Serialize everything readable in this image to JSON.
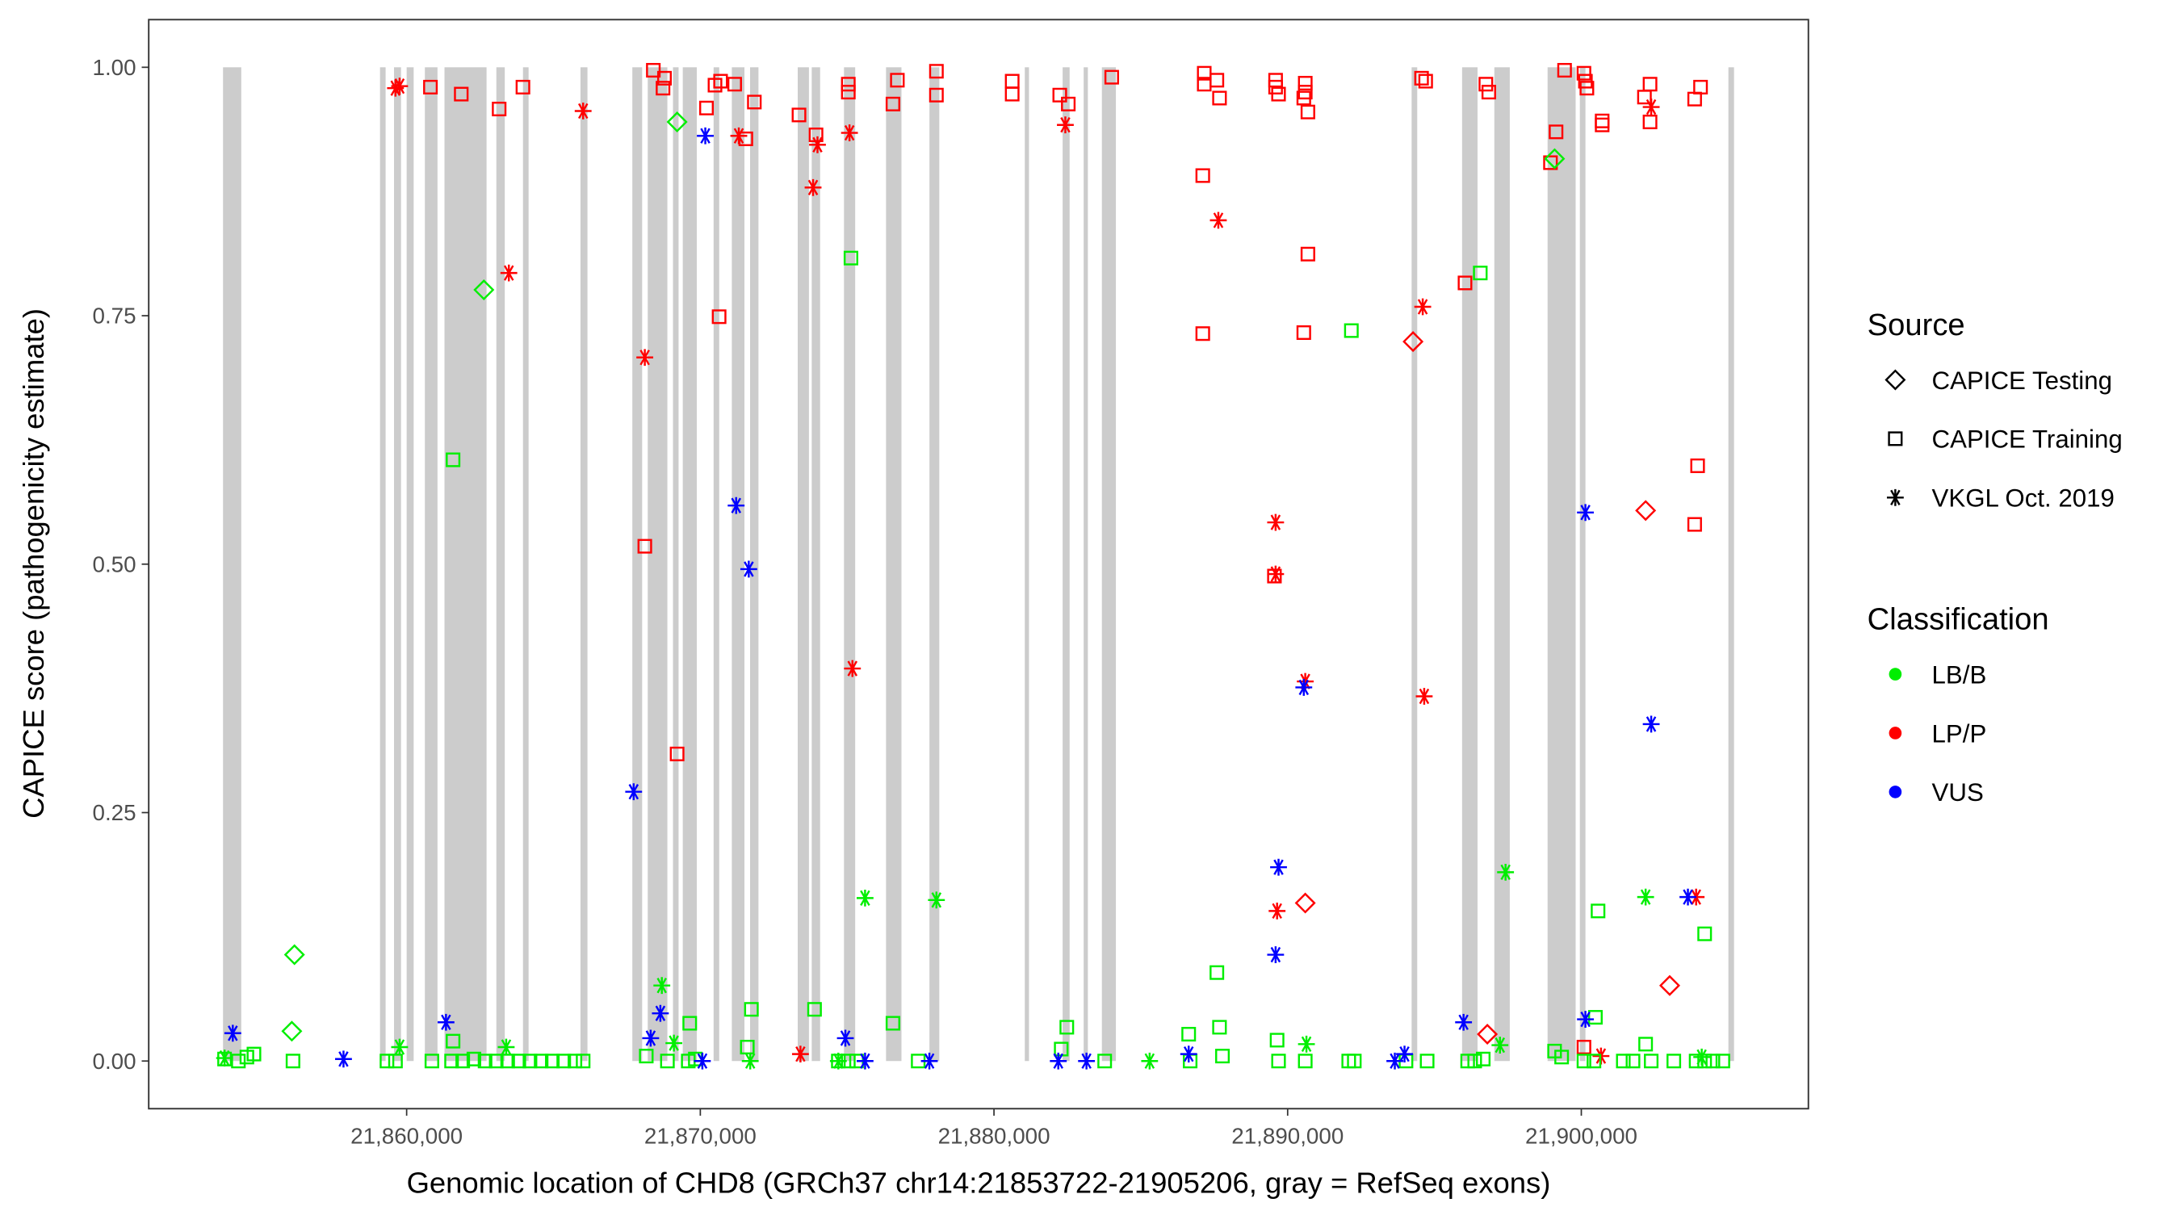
{
  "chart_data": {
    "type": "scatter",
    "xlabel": "Genomic location of CHD8 (GRCh37 chr14:21853722-21905206, gray = RefSeq exons)",
    "ylabel": "CAPICE score (pathogenicity estimate)",
    "xlim": [
      21853200,
      21905700
    ],
    "ylim": [
      -0.047,
      1.05
    ],
    "x_ticks": [
      21860000,
      21870000,
      21880000,
      21890000,
      21900000
    ],
    "x_tick_labels": [
      "21,860,000",
      "21,870,000",
      "21,880,000",
      "21,890,000",
      "21,900,000"
    ],
    "y_ticks": [
      0,
      0.25,
      0.5,
      0.75,
      1.0
    ],
    "y_tick_labels": [
      "0.00",
      "0.25",
      "0.50",
      "0.75",
      "1.00"
    ],
    "grid": false,
    "legend_position": "right",
    "legend": {
      "source_title": "Source",
      "source_items": [
        {
          "label": "CAPICE Testing",
          "shape": "diamond"
        },
        {
          "label": "CAPICE Training",
          "shape": "square"
        },
        {
          "label": "VKGL Oct. 2019",
          "shape": "asterisk"
        }
      ],
      "class_title": "Classification",
      "class_items": [
        {
          "label": "LB/B",
          "color": "#00ee00"
        },
        {
          "label": "LP/P",
          "color": "#ff0000"
        },
        {
          "label": "VUS",
          "color": "#0000ff"
        }
      ]
    },
    "exons": [
      [
        21853747,
        21854368
      ],
      [
        21859093,
        21859284
      ],
      [
        21859570,
        21859809
      ],
      [
        21860000,
        21860239
      ],
      [
        21860620,
        21861050
      ],
      [
        21861289,
        21862721
      ],
      [
        21863055,
        21863341
      ],
      [
        21863962,
        21864153
      ],
      [
        21865919,
        21866157
      ],
      [
        21867685,
        21868019
      ],
      [
        21868210,
        21868878
      ],
      [
        21869069,
        21869260
      ],
      [
        21869403,
        21869880
      ],
      [
        21870453,
        21870644
      ],
      [
        21871073,
        21871503
      ],
      [
        21871694,
        21871980
      ],
      [
        21873317,
        21873699
      ],
      [
        21873794,
        21874080
      ],
      [
        21874892,
        21875274
      ],
      [
        21876324,
        21876849
      ],
      [
        21877803,
        21878137
      ],
      [
        21881049,
        21881192
      ],
      [
        21882338,
        21882576
      ],
      [
        21883054,
        21883197
      ],
      [
        21883674,
        21884151
      ],
      [
        21894222,
        21894413
      ],
      [
        21895941,
        21896466
      ],
      [
        21897038,
        21897564
      ],
      [
        21898852,
        21899807
      ],
      [
        21899950,
        21900141
      ],
      [
        21905009,
        21905200
      ]
    ],
    "series": [
      {
        "source": "VKGL Oct. 2019",
        "classification": "LP/P",
        "points": [
          [
            21859620,
            0.979
          ],
          [
            21859760,
            0.981
          ],
          [
            21863480,
            0.793
          ],
          [
            21866010,
            0.956
          ],
          [
            21868110,
            0.708
          ],
          [
            21871310,
            0.931
          ],
          [
            21873840,
            0.879
          ],
          [
            21873990,
            0.922
          ],
          [
            21875080,
            0.934
          ],
          [
            21875180,
            0.395
          ],
          [
            21873410,
            0.007
          ],
          [
            21882430,
            0.942
          ],
          [
            21887640,
            0.846
          ],
          [
            21889590,
            0.542
          ],
          [
            21889590,
            0.49
          ],
          [
            21890600,
            0.382
          ],
          [
            21889640,
            0.151
          ],
          [
            21894600,
            0.759
          ],
          [
            21894650,
            0.367
          ],
          [
            21902380,
            0.96
          ],
          [
            21903910,
            0.165
          ],
          [
            21900670,
            0.005
          ]
        ]
      },
      {
        "source": "CAPICE Training",
        "classification": "LP/P",
        "points": [
          [
            21860810,
            0.98
          ],
          [
            21861860,
            0.973
          ],
          [
            21863150,
            0.958
          ],
          [
            21863960,
            0.98
          ],
          [
            21868400,
            0.997
          ],
          [
            21868780,
            0.989
          ],
          [
            21868730,
            0.979
          ],
          [
            21870210,
            0.959
          ],
          [
            21870500,
            0.982
          ],
          [
            21870690,
            0.986
          ],
          [
            21871170,
            0.983
          ],
          [
            21871550,
            0.928
          ],
          [
            21871840,
            0.965
          ],
          [
            21873360,
            0.952
          ],
          [
            21873940,
            0.932
          ],
          [
            21875040,
            0.983
          ],
          [
            21875040,
            0.975
          ],
          [
            21876560,
            0.963
          ],
          [
            21876710,
            0.987
          ],
          [
            21878040,
            0.996
          ],
          [
            21878040,
            0.972
          ],
          [
            21880620,
            0.986
          ],
          [
            21880620,
            0.973
          ],
          [
            21882240,
            0.972
          ],
          [
            21882530,
            0.963
          ],
          [
            21884010,
            0.99
          ],
          [
            21887160,
            0.994
          ],
          [
            21887160,
            0.983
          ],
          [
            21887590,
            0.987
          ],
          [
            21887680,
            0.969
          ],
          [
            21887110,
            0.891
          ],
          [
            21887110,
            0.732
          ],
          [
            21889590,
            0.987
          ],
          [
            21889590,
            0.98
          ],
          [
            21889690,
            0.973
          ],
          [
            21890600,
            0.984
          ],
          [
            21890600,
            0.975
          ],
          [
            21890550,
            0.969
          ],
          [
            21890690,
            0.955
          ],
          [
            21890690,
            0.812
          ],
          [
            21890550,
            0.733
          ],
          [
            21894560,
            0.989
          ],
          [
            21894700,
            0.986
          ],
          [
            21896750,
            0.983
          ],
          [
            21896850,
            0.975
          ],
          [
            21896040,
            0.783
          ],
          [
            21899140,
            0.935
          ],
          [
            21899430,
            0.997
          ],
          [
            21900090,
            0.994
          ],
          [
            21900140,
            0.986
          ],
          [
            21900190,
            0.979
          ],
          [
            21900710,
            0.946
          ],
          [
            21900710,
            0.942
          ],
          [
            21902150,
            0.97
          ],
          [
            21902340,
            0.983
          ],
          [
            21902340,
            0.945
          ],
          [
            21903960,
            0.599
          ],
          [
            21903860,
            0.54
          ],
          [
            21904060,
            0.98
          ],
          [
            21903860,
            0.968
          ],
          [
            21898950,
            0.904
          ],
          [
            21868110,
            0.518
          ],
          [
            21869210,
            0.309
          ],
          [
            21870640,
            0.749
          ],
          [
            21889550,
            0.488
          ],
          [
            21900090,
            0.014
          ]
        ]
      },
      {
        "source": "CAPICE Testing",
        "classification": "LP/P",
        "points": [
          [
            21894270,
            0.724
          ],
          [
            21890600,
            0.159
          ],
          [
            21902190,
            0.554
          ],
          [
            21903010,
            0.076
          ],
          [
            21896800,
            0.027
          ]
        ]
      },
      {
        "source": "CAPICE Testing",
        "classification": "LB/B",
        "points": [
          [
            21869210,
            0.945
          ],
          [
            21862630,
            0.776
          ],
          [
            21856180,
            0.107
          ],
          [
            21856090,
            0.03
          ],
          [
            21899090,
            0.908
          ]
        ]
      },
      {
        "source": "CAPICE Training",
        "classification": "LB/B",
        "points": [
          [
            21861580,
            0.605
          ],
          [
            21875130,
            0.808
          ],
          [
            21892170,
            0.735
          ],
          [
            21896560,
            0.793
          ],
          [
            21887590,
            0.089
          ],
          [
            21900570,
            0.151
          ],
          [
            21904200,
            0.128
          ],
          [
            21876560,
            0.038
          ],
          [
            21873890,
            0.052
          ],
          [
            21871740,
            0.052
          ],
          [
            21887680,
            0.034
          ],
          [
            21882480,
            0.034
          ],
          [
            21886630,
            0.027
          ],
          [
            21869640,
            0.038
          ],
          [
            21889640,
            0.021
          ],
          [
            21900480,
            0.044
          ],
          [
            21902190,
            0.017
          ],
          [
            21861580,
            0.02
          ],
          [
            21853800,
            0.002
          ],
          [
            21854270,
            0.0
          ],
          [
            21854560,
            0.004
          ],
          [
            21854800,
            0.007
          ],
          [
            21856130,
            0.0
          ],
          [
            21859330,
            0.0
          ],
          [
            21859620,
            0.0
          ],
          [
            21860860,
            0.0
          ],
          [
            21861530,
            0.0
          ],
          [
            21861910,
            0.0
          ],
          [
            21862290,
            0.002
          ],
          [
            21862670,
            0.0
          ],
          [
            21863050,
            0.0
          ],
          [
            21863440,
            0.0
          ],
          [
            21863820,
            0.0
          ],
          [
            21864200,
            0.0
          ],
          [
            21864580,
            0.0
          ],
          [
            21864960,
            0.0
          ],
          [
            21865350,
            0.0
          ],
          [
            21865730,
            0.0
          ],
          [
            21866010,
            0.0
          ],
          [
            21868160,
            0.005
          ],
          [
            21868880,
            0.0
          ],
          [
            21869590,
            0.0
          ],
          [
            21869830,
            0.002
          ],
          [
            21871600,
            0.014
          ],
          [
            21874700,
            0.0
          ],
          [
            21875040,
            0.0
          ],
          [
            21875320,
            0.0
          ],
          [
            21877420,
            0.0
          ],
          [
            21882290,
            0.012
          ],
          [
            21883770,
            0.0
          ],
          [
            21886680,
            0.0
          ],
          [
            21887780,
            0.005
          ],
          [
            21889690,
            0.0
          ],
          [
            21890600,
            0.0
          ],
          [
            21892080,
            0.0
          ],
          [
            21892270,
            0.0
          ],
          [
            21894030,
            0.0
          ],
          [
            21894750,
            0.0
          ],
          [
            21896130,
            0.0
          ],
          [
            21896370,
            0.0
          ],
          [
            21896660,
            0.002
          ],
          [
            21899090,
            0.01
          ],
          [
            21899330,
            0.004
          ],
          [
            21900090,
            0.0
          ],
          [
            21900430,
            0.0
          ],
          [
            21901430,
            0.0
          ],
          [
            21901760,
            0.0
          ],
          [
            21902380,
            0.0
          ],
          [
            21903150,
            0.0
          ],
          [
            21903910,
            0.0
          ],
          [
            21904200,
            0.0
          ],
          [
            21904480,
            0.0
          ],
          [
            21904820,
            0.0
          ]
        ]
      },
      {
        "source": "VKGL Oct. 2019",
        "classification": "LB/B",
        "points": [
          [
            21875610,
            0.164
          ],
          [
            21878040,
            0.162
          ],
          [
            21868690,
            0.076
          ],
          [
            21897420,
            0.19
          ],
          [
            21902190,
            0.165
          ],
          [
            21890640,
            0.017
          ],
          [
            21859760,
            0.014
          ],
          [
            21863390,
            0.014
          ],
          [
            21885300,
            0.0
          ],
          [
            21897230,
            0.016
          ],
          [
            21853800,
            0.003
          ],
          [
            21874700,
            0.0
          ],
          [
            21869100,
            0.018
          ],
          [
            21871700,
            0.0
          ],
          [
            21904100,
            0.004
          ]
        ]
      },
      {
        "source": "VKGL Oct. 2019",
        "classification": "VUS",
        "points": [
          [
            21870170,
            0.931
          ],
          [
            21871220,
            0.559
          ],
          [
            21871650,
            0.495
          ],
          [
            21867730,
            0.271
          ],
          [
            21868640,
            0.048
          ],
          [
            21868310,
            0.023
          ],
          [
            21861340,
            0.039
          ],
          [
            21854080,
            0.028
          ],
          [
            21874940,
            0.023
          ],
          [
            21857850,
            0.002
          ],
          [
            21870070,
            0.0
          ],
          [
            21875610,
            0.0
          ],
          [
            21877800,
            0.0
          ],
          [
            21882190,
            0.0
          ],
          [
            21883150,
            0.0
          ],
          [
            21886630,
            0.007
          ],
          [
            21889690,
            0.195
          ],
          [
            21889590,
            0.107
          ],
          [
            21890550,
            0.376
          ],
          [
            21900140,
            0.552
          ],
          [
            21902380,
            0.339
          ],
          [
            21903630,
            0.165
          ],
          [
            21895990,
            0.039
          ],
          [
            21900140,
            0.042
          ],
          [
            21893650,
            0.0
          ],
          [
            21893980,
            0.007
          ]
        ]
      }
    ]
  }
}
